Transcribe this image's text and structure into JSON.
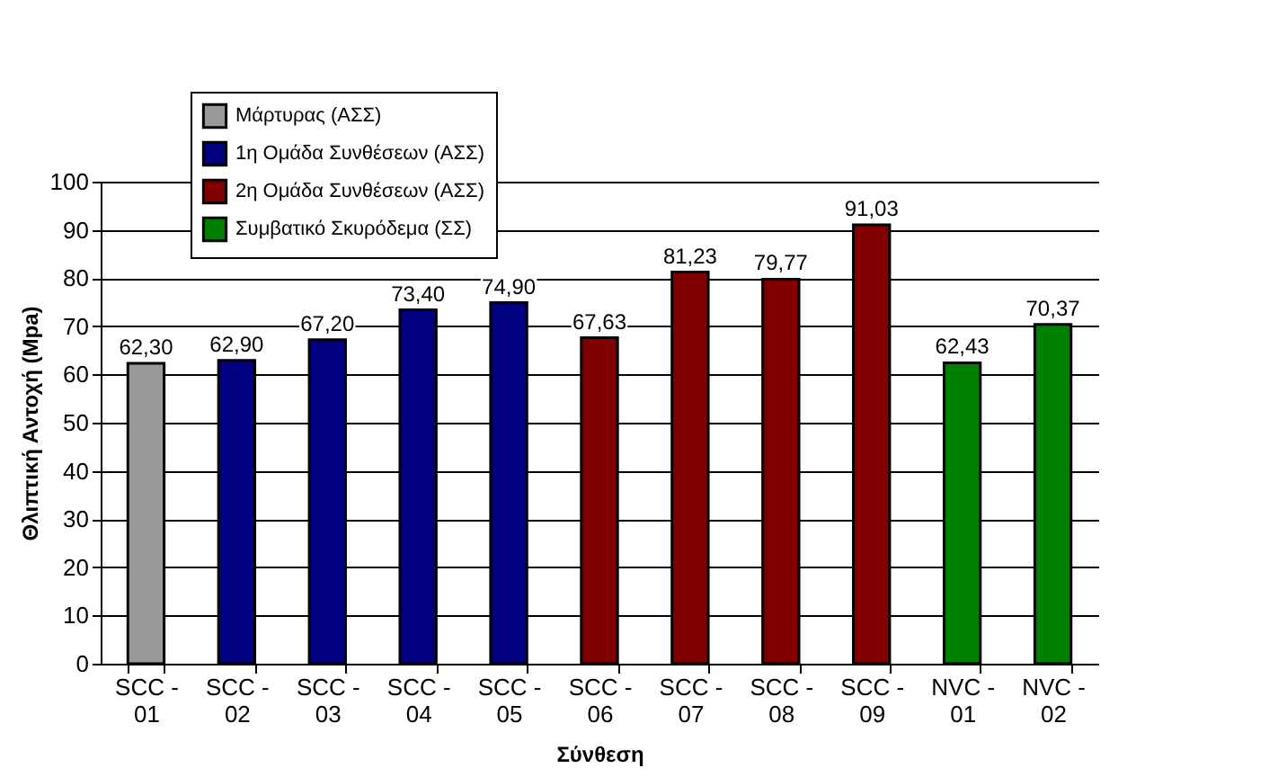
{
  "chart_data": {
    "type": "bar",
    "xlabel": "Σύνθεση",
    "ylabel": "Θλιπτική Αντοχή (Mpa)",
    "categories": [
      "SCC - 01",
      "SCC - 02",
      "SCC - 03",
      "SCC - 04",
      "SCC - 05",
      "SCC - 06",
      "SCC - 07",
      "SCC - 08",
      "SCC - 09",
      "NVC - 01",
      "NVC - 02"
    ],
    "series": [
      {
        "name": "Μάρτυρας (ΑΣΣ)",
        "color": "#999999",
        "values": [
          62.3,
          null,
          null,
          null,
          null,
          null,
          null,
          null,
          null,
          null,
          null
        ],
        "value_labels": [
          "62,30",
          null,
          null,
          null,
          null,
          null,
          null,
          null,
          null,
          null,
          null
        ]
      },
      {
        "name": "1η Ομάδα Συνθέσεων (ΑΣΣ)",
        "color": "#000080",
        "values": [
          null,
          62.9,
          67.2,
          73.4,
          74.9,
          null,
          null,
          null,
          null,
          null,
          null
        ],
        "value_labels": [
          null,
          "62,90",
          "67,20",
          "73,40",
          "74,90",
          null,
          null,
          null,
          null,
          null,
          null
        ]
      },
      {
        "name": "2η Ομάδα Συνθέσεων (ΑΣΣ)",
        "color": "#800000",
        "values": [
          null,
          null,
          null,
          null,
          null,
          67.63,
          81.23,
          79.77,
          91.03,
          null,
          null
        ],
        "value_labels": [
          null,
          null,
          null,
          null,
          null,
          "67,63",
          "81,23",
          "79,77",
          "91,03",
          null,
          null
        ]
      },
      {
        "name": "Συμβατικό Σκυρόδεμα (ΣΣ)",
        "color": "#008000",
        "values": [
          null,
          null,
          null,
          null,
          null,
          null,
          null,
          null,
          null,
          62.43,
          70.37
        ],
        "value_labels": [
          null,
          null,
          null,
          null,
          null,
          null,
          null,
          null,
          null,
          "62,43",
          "70,37"
        ]
      }
    ],
    "ylim": [
      0,
      100
    ],
    "yticks": [
      0,
      10,
      20,
      30,
      40,
      50,
      60,
      70,
      80,
      90,
      100
    ],
    "grid": "y",
    "legend": "top left"
  }
}
